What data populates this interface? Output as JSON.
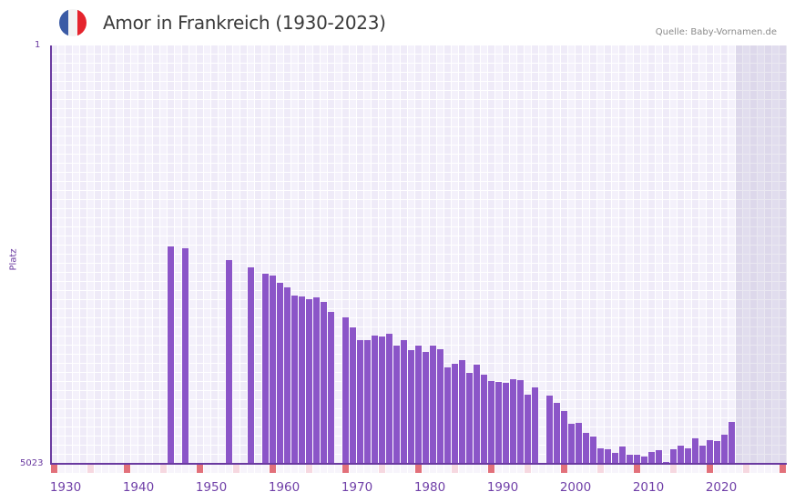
{
  "header": {
    "title": "Amor in Frankreich (1930-2023)",
    "source": "Quelle: Baby-Vornamen.de",
    "flag_icon": "france-flag-icon",
    "flag_colors": [
      "#3b5ba5",
      "#f3f3f3",
      "#e5242d"
    ]
  },
  "colors": {
    "bar": "#8b55c8",
    "axis": "#6a3aa0",
    "decade_marker": "#e2707a",
    "half_decade_marker": "#f6d8e0"
  },
  "chart_data": {
    "type": "bar",
    "title": "Amor in Frankreich (1930-2023)",
    "xlabel": "",
    "ylabel": "Platz",
    "y_inverted": true,
    "ylim": [
      1,
      5023
    ],
    "y_tick_labels": [
      "1",
      "5023"
    ],
    "x_range": [
      1930,
      2030
    ],
    "x_tick_labels": [
      "1930",
      "1940",
      "1950",
      "1960",
      "1970",
      "1980",
      "1990",
      "2000",
      "2010",
      "2020"
    ],
    "grid": true,
    "forecast_shaded_from": 2024,
    "categories": [
      1946,
      1948,
      1954,
      1957,
      1959,
      1960,
      1961,
      1962,
      1963,
      1964,
      1965,
      1966,
      1967,
      1968,
      1970,
      1971,
      1972,
      1973,
      1974,
      1975,
      1976,
      1977,
      1978,
      1979,
      1980,
      1981,
      1982,
      1983,
      1984,
      1985,
      1986,
      1987,
      1988,
      1989,
      1990,
      1991,
      1992,
      1993,
      1994,
      1995,
      1996,
      1998,
      1999,
      2000,
      2001,
      2002,
      2003,
      2004,
      2005,
      2006,
      2007,
      2008,
      2009,
      2010,
      2011,
      2012,
      2013,
      2014,
      2015,
      2016,
      2017,
      2018,
      2019,
      2020,
      2021,
      2022,
      2023
    ],
    "values": [
      2414,
      2436,
      2578,
      2665,
      2741,
      2763,
      2851,
      2905,
      3003,
      3014,
      3047,
      3025,
      3080,
      3200,
      3265,
      3385,
      3538,
      3538,
      3484,
      3495,
      3462,
      3604,
      3538,
      3658,
      3604,
      3680,
      3604,
      3647,
      3866,
      3822,
      3778,
      3931,
      3833,
      3953,
      4030,
      4040,
      4051,
      4008,
      4019,
      4193,
      4106,
      4204,
      4292,
      4390,
      4543,
      4532,
      4652,
      4695,
      4837,
      4848,
      4892,
      4815,
      4914,
      4914,
      4935,
      4881,
      4859,
      5001,
      4848,
      4805,
      4837,
      4717,
      4805,
      4739,
      4750,
      4674,
      4521
    ]
  }
}
